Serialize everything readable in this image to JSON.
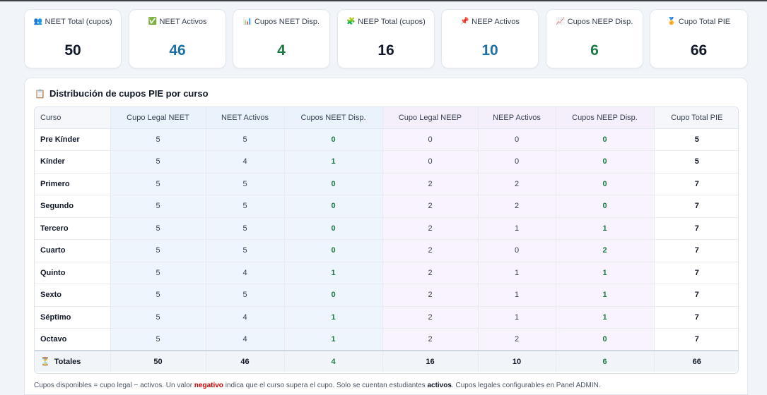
{
  "summary_cards": [
    {
      "icon": "people-icon",
      "glyph": "👥",
      "label": "NEET Total (cupos)",
      "value": "50",
      "tone": "dark"
    },
    {
      "icon": "check-icon",
      "glyph": "✅",
      "label": "NEET Activos",
      "value": "46",
      "tone": "blue"
    },
    {
      "icon": "bar-chart-icon",
      "glyph": "📊",
      "label": "Cupos NEET Disp.",
      "value": "4",
      "tone": "green"
    },
    {
      "icon": "puzzle-icon",
      "glyph": "🧩",
      "label": "NEEP Total (cupos)",
      "value": "16",
      "tone": "dark"
    },
    {
      "icon": "pin-icon",
      "glyph": "📌",
      "label": "NEEP Activos",
      "value": "10",
      "tone": "blue"
    },
    {
      "icon": "trend-chart-icon",
      "glyph": "📈",
      "label": "Cupos NEEP Disp.",
      "value": "6",
      "tone": "green"
    },
    {
      "icon": "medal-icon",
      "glyph": "🏅",
      "label": "Cupo Total PIE",
      "value": "66",
      "tone": "dark"
    }
  ],
  "panel": {
    "icon": "clipboard-icon",
    "title": "Distribución de cupos PIE por curso"
  },
  "table": {
    "headers": [
      "Curso",
      "Cupo Legal NEET",
      "NEET Activos",
      "Cupos NEET Disp.",
      "Cupo Legal NEEP",
      "NEEP Activos",
      "Cupos NEEP Disp.",
      "Cupo Total PIE"
    ],
    "rows": [
      [
        "Pre Kínder",
        "5",
        "5",
        "0",
        "0",
        "0",
        "0",
        "5"
      ],
      [
        "Kínder",
        "5",
        "4",
        "1",
        "0",
        "0",
        "0",
        "5"
      ],
      [
        "Primero",
        "5",
        "5",
        "0",
        "2",
        "2",
        "0",
        "7"
      ],
      [
        "Segundo",
        "5",
        "5",
        "0",
        "2",
        "2",
        "0",
        "7"
      ],
      [
        "Tercero",
        "5",
        "5",
        "0",
        "2",
        "1",
        "1",
        "7"
      ],
      [
        "Cuarto",
        "5",
        "5",
        "0",
        "2",
        "0",
        "2",
        "7"
      ],
      [
        "Quinto",
        "5",
        "4",
        "1",
        "2",
        "1",
        "1",
        "7"
      ],
      [
        "Sexto",
        "5",
        "5",
        "0",
        "2",
        "1",
        "1",
        "7"
      ],
      [
        "Séptimo",
        "5",
        "4",
        "1",
        "2",
        "1",
        "1",
        "7"
      ],
      [
        "Octavo",
        "5",
        "4",
        "1",
        "2",
        "2",
        "0",
        "7"
      ]
    ],
    "totals": [
      "Totales",
      "50",
      "46",
      "4",
      "16",
      "10",
      "6",
      "66"
    ],
    "totals_icon": "hourglass-icon"
  },
  "footnote": {
    "part1": "Cupos disponibles = cupo legal − activos. Un valor ",
    "negative": "negativo",
    "part2": " indica que el curso supera el cupo. Solo se cuentan estudiantes ",
    "active": "activos",
    "part3": ". Cupos legales configurables en Panel ADMIN."
  },
  "colors": {
    "blue_value": "#1f6fa5",
    "green_value": "#1e7a43",
    "neet_column_bg": "#eef5fd",
    "neep_column_bg": "#f8f3fc",
    "negative_text": "#cc0000"
  }
}
